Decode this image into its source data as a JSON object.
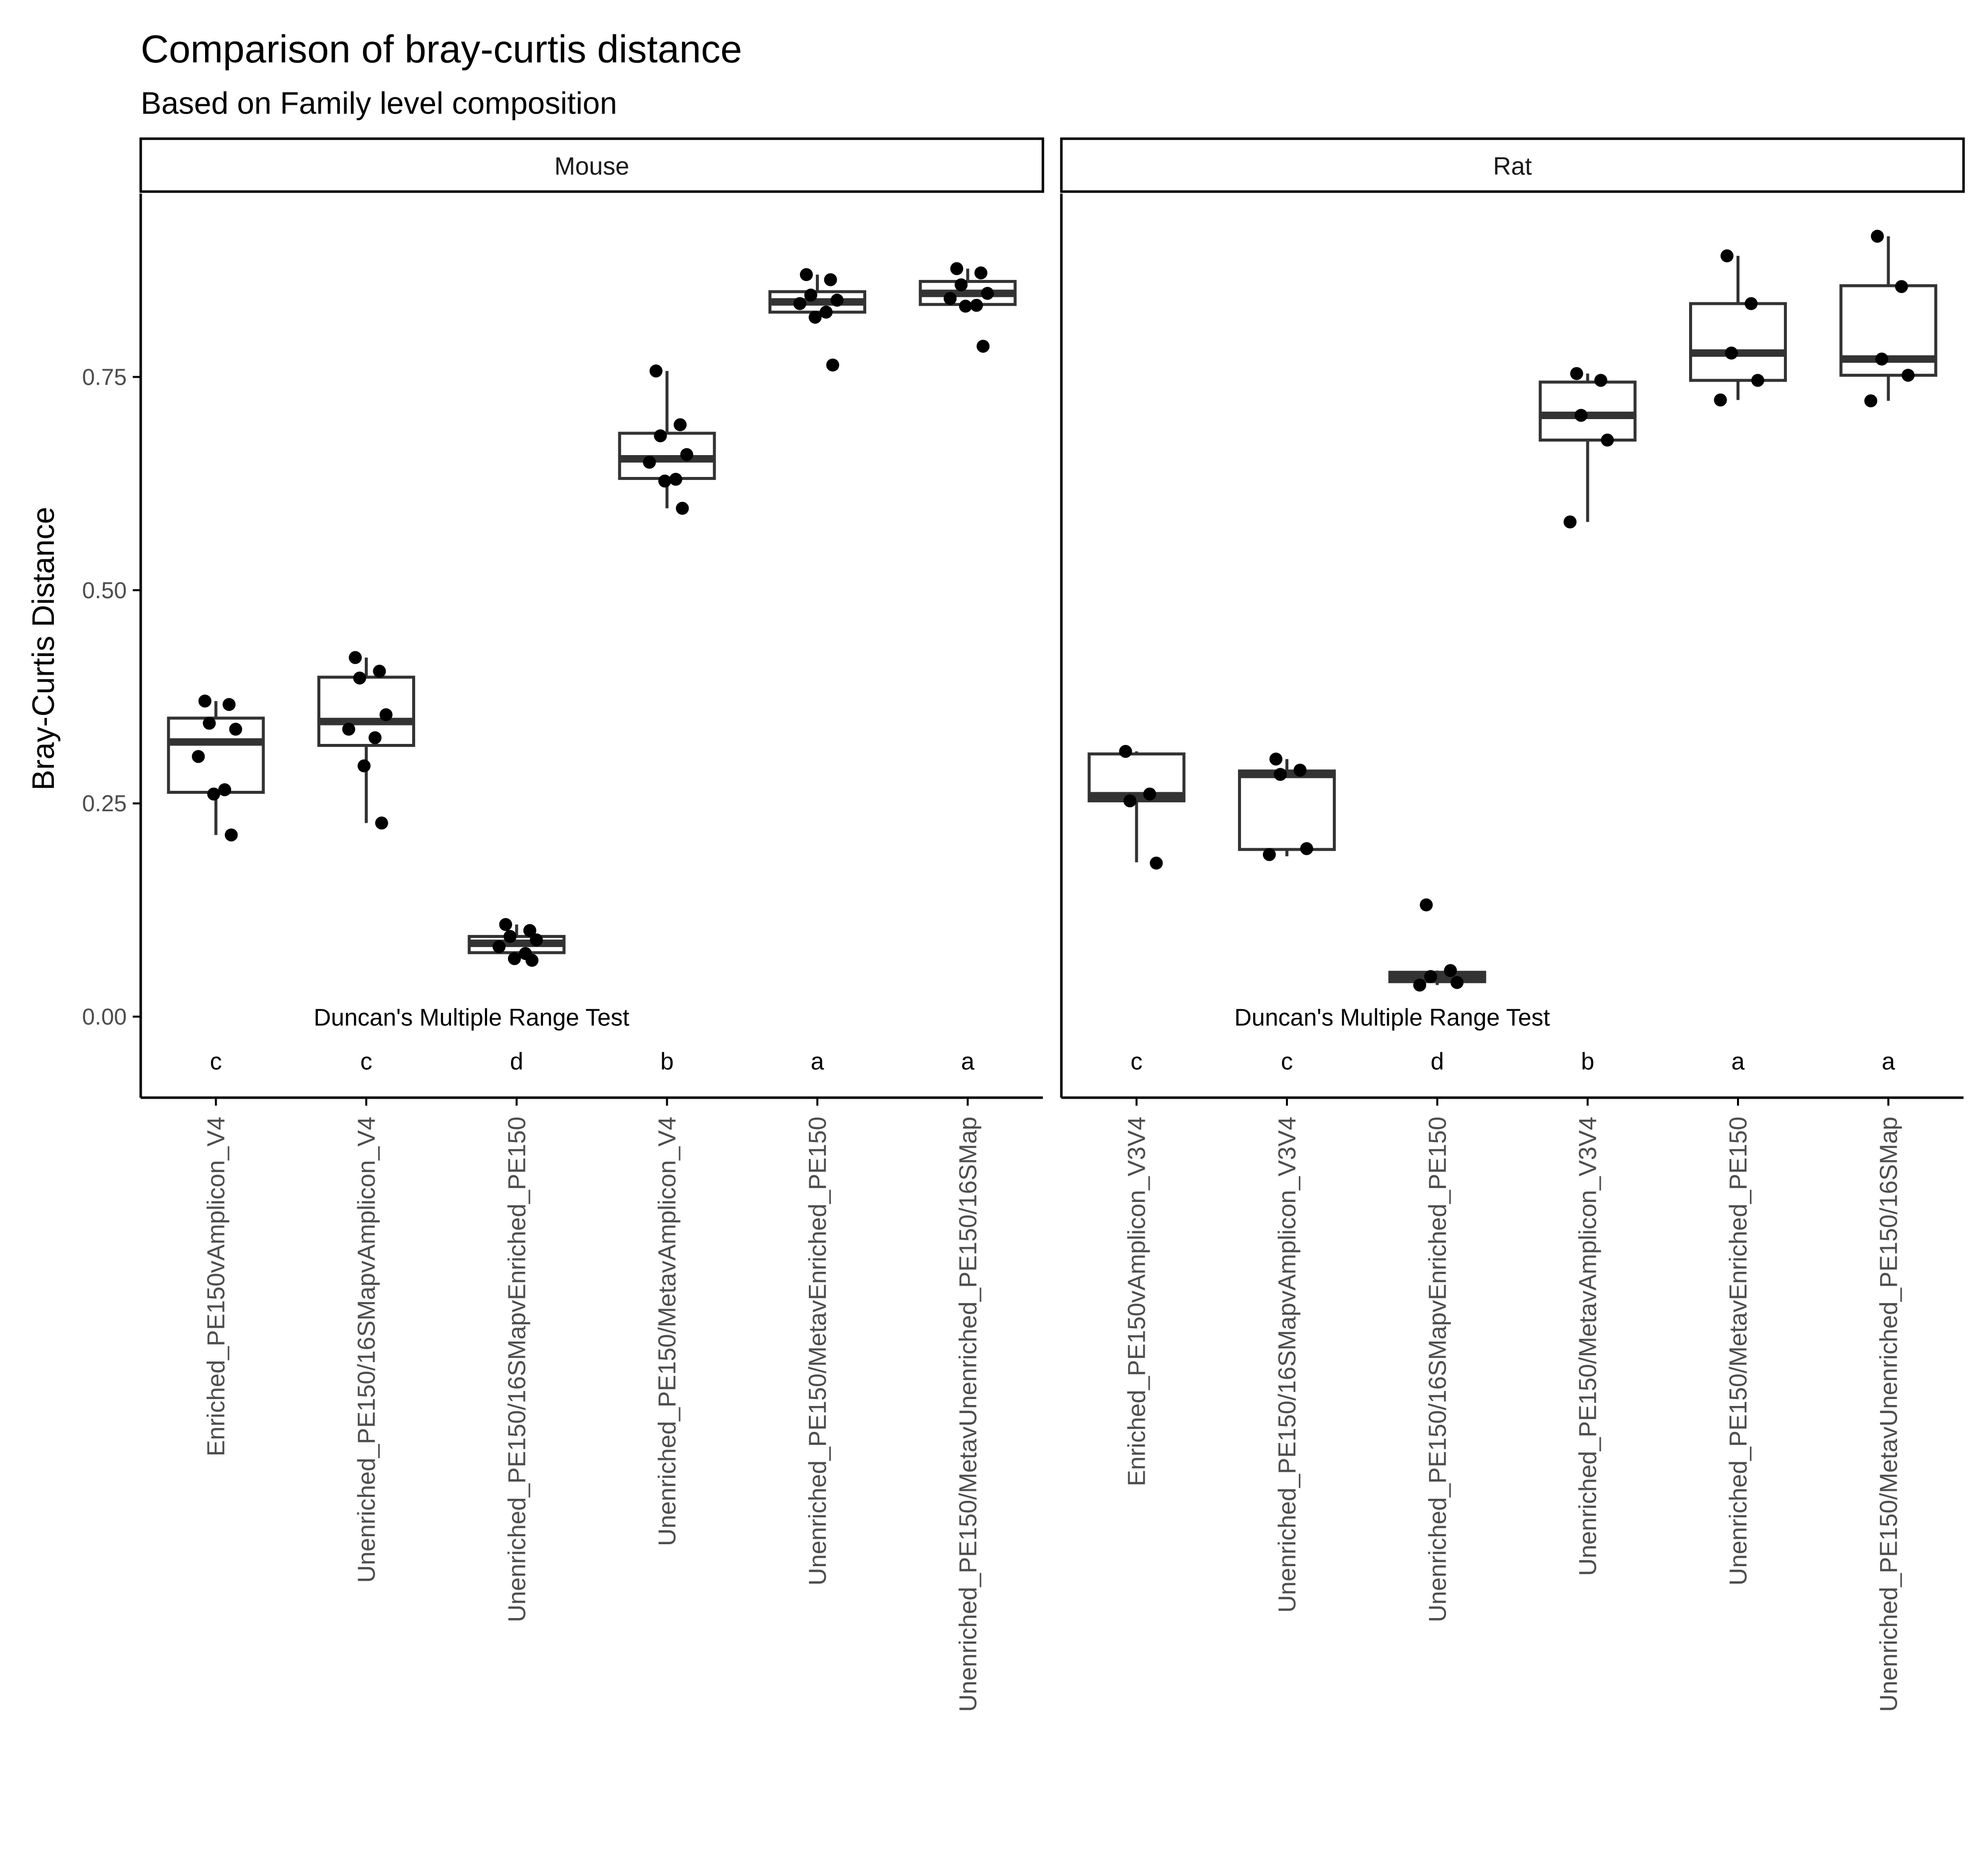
{
  "chart_data": {
    "type": "box",
    "title": "Comparison of bray-curtis distance",
    "subtitle": "Based on Family level composition",
    "ylabel": "Bray-Curtis Distance",
    "xlabel": "",
    "ylim": [
      -0.095,
      0.965
    ],
    "yticks": [
      0.0,
      0.25,
      0.5,
      0.75
    ],
    "ytick_labels": [
      "0.00",
      "0.25",
      "0.50",
      "0.75"
    ],
    "grid": false,
    "legend": "none",
    "colors": {
      "box_line": "#333333",
      "box_fill": "#ffffff",
      "point": "#000000",
      "axis": "#000000"
    },
    "annotation_text": "Duncan's Multiple Range Test",
    "annotation_y": 0.0,
    "letters_y": -0.052,
    "panels": [
      {
        "name": "Mouse",
        "categories": [
          "Enriched_PE150vAmplicon_V4",
          "Unenriched_PE150/16SMapvAmplicon_V4",
          "Unenriched_PE150/16SMapvEnriched_PE150",
          "Unenriched_PE150/MetavAmplicon_V4",
          "Unenriched_PE150/MetavEnriched_PE150",
          "Unenriched_PE150/MetavUnenriched_PE150/16SMap"
        ],
        "letters": [
          "c",
          "c",
          "d",
          "b",
          "a",
          "a"
        ],
        "boxes": [
          {
            "min": 0.213,
            "q1": 0.263,
            "median": 0.322,
            "q3": 0.35,
            "max": 0.37
          },
          {
            "min": 0.227,
            "q1": 0.318,
            "median": 0.346,
            "q3": 0.398,
            "max": 0.421
          },
          {
            "min": 0.066,
            "q1": 0.075,
            "median": 0.086,
            "q3": 0.094,
            "max": 0.108
          },
          {
            "min": 0.596,
            "q1": 0.631,
            "median": 0.654,
            "q3": 0.684,
            "max": 0.757
          },
          {
            "min": 0.82,
            "q1": 0.826,
            "median": 0.838,
            "q3": 0.85,
            "max": 0.87
          },
          {
            "min": 0.833,
            "q1": 0.835,
            "median": 0.848,
            "q3": 0.862,
            "max": 0.877
          }
        ],
        "points": [
          [
            0.37,
            0.366,
            0.344,
            0.337,
            0.305,
            0.266,
            0.261,
            0.213
          ],
          [
            0.421,
            0.405,
            0.397,
            0.354,
            0.337,
            0.327,
            0.294,
            0.227
          ],
          [
            0.108,
            0.101,
            0.094,
            0.09,
            0.082,
            0.074,
            0.068,
            0.066
          ],
          [
            0.757,
            0.694,
            0.681,
            0.659,
            0.65,
            0.63,
            0.628,
            0.596
          ],
          [
            0.87,
            0.864,
            0.846,
            0.84,
            0.836,
            0.826,
            0.82,
            0.764
          ],
          [
            0.877,
            0.872,
            0.858,
            0.848,
            0.842,
            0.834,
            0.833,
            0.786
          ]
        ]
      },
      {
        "name": "Rat",
        "categories": [
          "Enriched_PE150vAmplicon_V3V4",
          "Unenriched_PE150/16SMapvAmplicon_V3V4",
          "Unenriched_PE150/16SMapvEnriched_PE150",
          "Unenriched_PE150/MetavAmplicon_V3V4",
          "Unenriched_PE150/MetavEnriched_PE150",
          "Unenriched_PE150/MetavUnenriched_PE150/16SMap"
        ],
        "letters": [
          "c",
          "c",
          "d",
          "b",
          "a",
          "a"
        ],
        "boxes": [
          {
            "min": 0.181,
            "q1": 0.253,
            "median": 0.259,
            "q3": 0.308,
            "max": 0.311
          },
          {
            "min": 0.188,
            "q1": 0.196,
            "median": 0.284,
            "q3": 0.288,
            "max": 0.302
          },
          {
            "min": 0.037,
            "q1": 0.041,
            "median": 0.047,
            "q3": 0.052,
            "max": 0.054
          },
          {
            "min": 0.58,
            "q1": 0.676,
            "median": 0.705,
            "q3": 0.744,
            "max": 0.754
          },
          {
            "min": 0.723,
            "q1": 0.746,
            "median": 0.778,
            "q3": 0.836,
            "max": 0.892
          },
          {
            "min": 0.722,
            "q1": 0.752,
            "median": 0.771,
            "q3": 0.857,
            "max": 0.915
          }
        ],
        "points": [
          [
            0.311,
            0.261,
            0.253,
            0.18
          ],
          [
            0.302,
            0.289,
            0.284,
            0.197,
            0.19
          ],
          [
            0.131,
            0.054,
            0.047,
            0.04,
            0.037
          ],
          [
            0.754,
            0.746,
            0.705,
            0.676,
            0.58
          ],
          [
            0.892,
            0.836,
            0.778,
            0.746,
            0.723
          ],
          [
            0.915,
            0.856,
            0.771,
            0.752,
            0.722
          ]
        ]
      }
    ]
  }
}
